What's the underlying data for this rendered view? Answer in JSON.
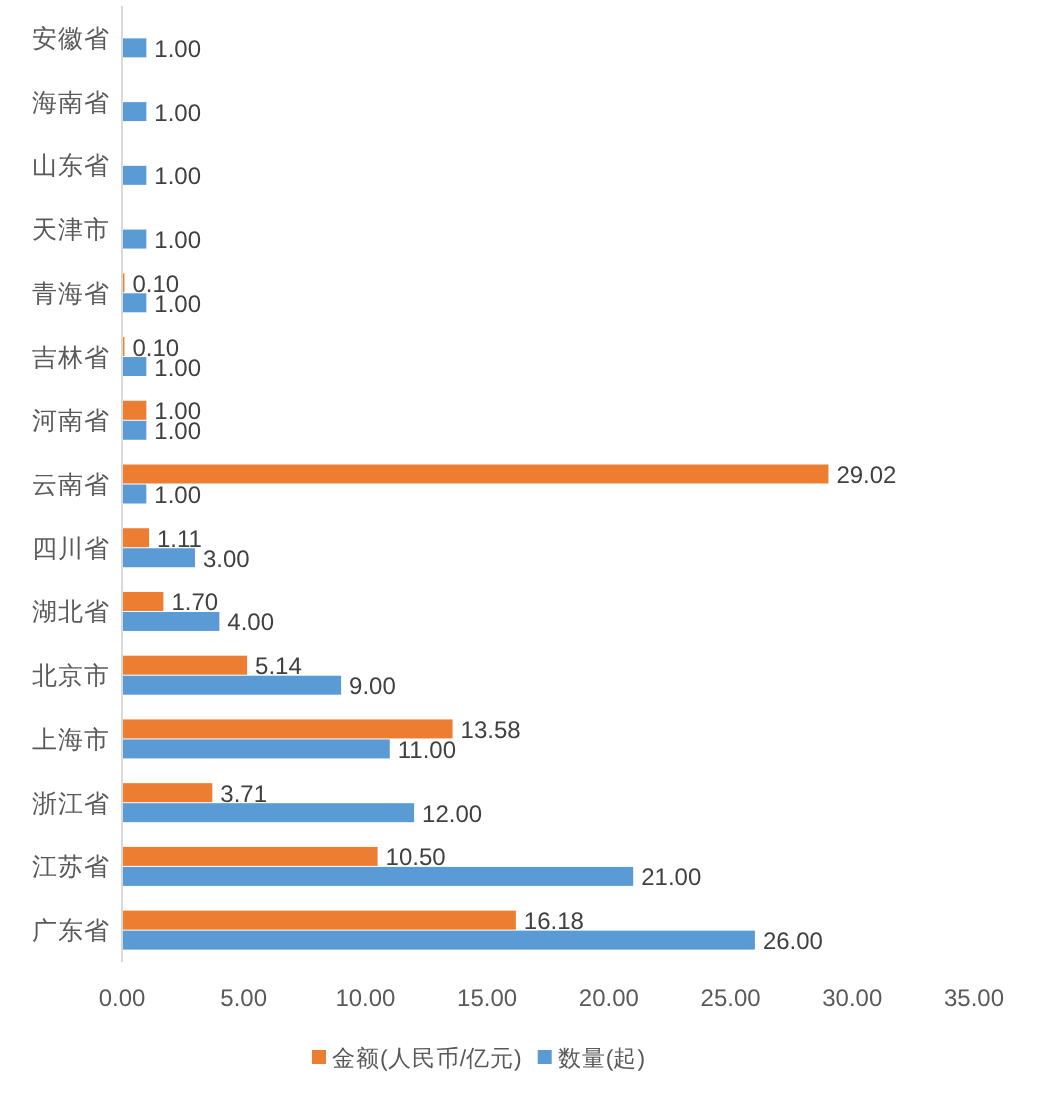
{
  "chart_data": {
    "type": "bar",
    "orientation": "horizontal",
    "categories": [
      "安徽省",
      "海南省",
      "山东省",
      "天津市",
      "青海省",
      "吉林省",
      "河南省",
      "云南省",
      "四川省",
      "湖北省",
      "北京市",
      "上海市",
      "浙江省",
      "江苏省",
      "广东省"
    ],
    "series": [
      {
        "name": "金额(人民币/亿元)",
        "color": "#ed7d31",
        "values": [
          null,
          null,
          null,
          null,
          0.1,
          0.1,
          1.0,
          29.02,
          1.11,
          1.7,
          5.14,
          13.58,
          3.71,
          10.5,
          16.18
        ],
        "value_labels": [
          null,
          null,
          null,
          null,
          "0.10",
          "0.10",
          "1.00",
          "29.02",
          "1.11",
          "1.70",
          "5.14",
          "13.58",
          "3.71",
          "10.50",
          "16.18"
        ]
      },
      {
        "name": "数量(起)",
        "color": "#5b9bd5",
        "values": [
          1,
          1,
          1,
          1,
          1,
          1,
          1,
          1,
          3,
          4,
          9,
          11,
          12,
          21,
          26
        ],
        "value_labels": [
          "1.00",
          "1.00",
          "1.00",
          "1.00",
          "1.00",
          "1.00",
          "1.00",
          "1.00",
          "3.00",
          "4.00",
          "9.00",
          "11.00",
          "12.00",
          "21.00",
          "26.00"
        ]
      }
    ],
    "xlim": [
      0,
      35
    ],
    "xticks": [
      {
        "value": 0,
        "label": "0.00"
      },
      {
        "value": 5,
        "label": "5.00"
      },
      {
        "value": 10,
        "label": "10.00"
      },
      {
        "value": 15,
        "label": "15.00"
      },
      {
        "value": 20,
        "label": "20.00"
      },
      {
        "value": 25,
        "label": "25.00"
      },
      {
        "value": 30,
        "label": "30.00"
      },
      {
        "value": 35,
        "label": "35.00"
      }
    ],
    "legend": "bottom"
  }
}
